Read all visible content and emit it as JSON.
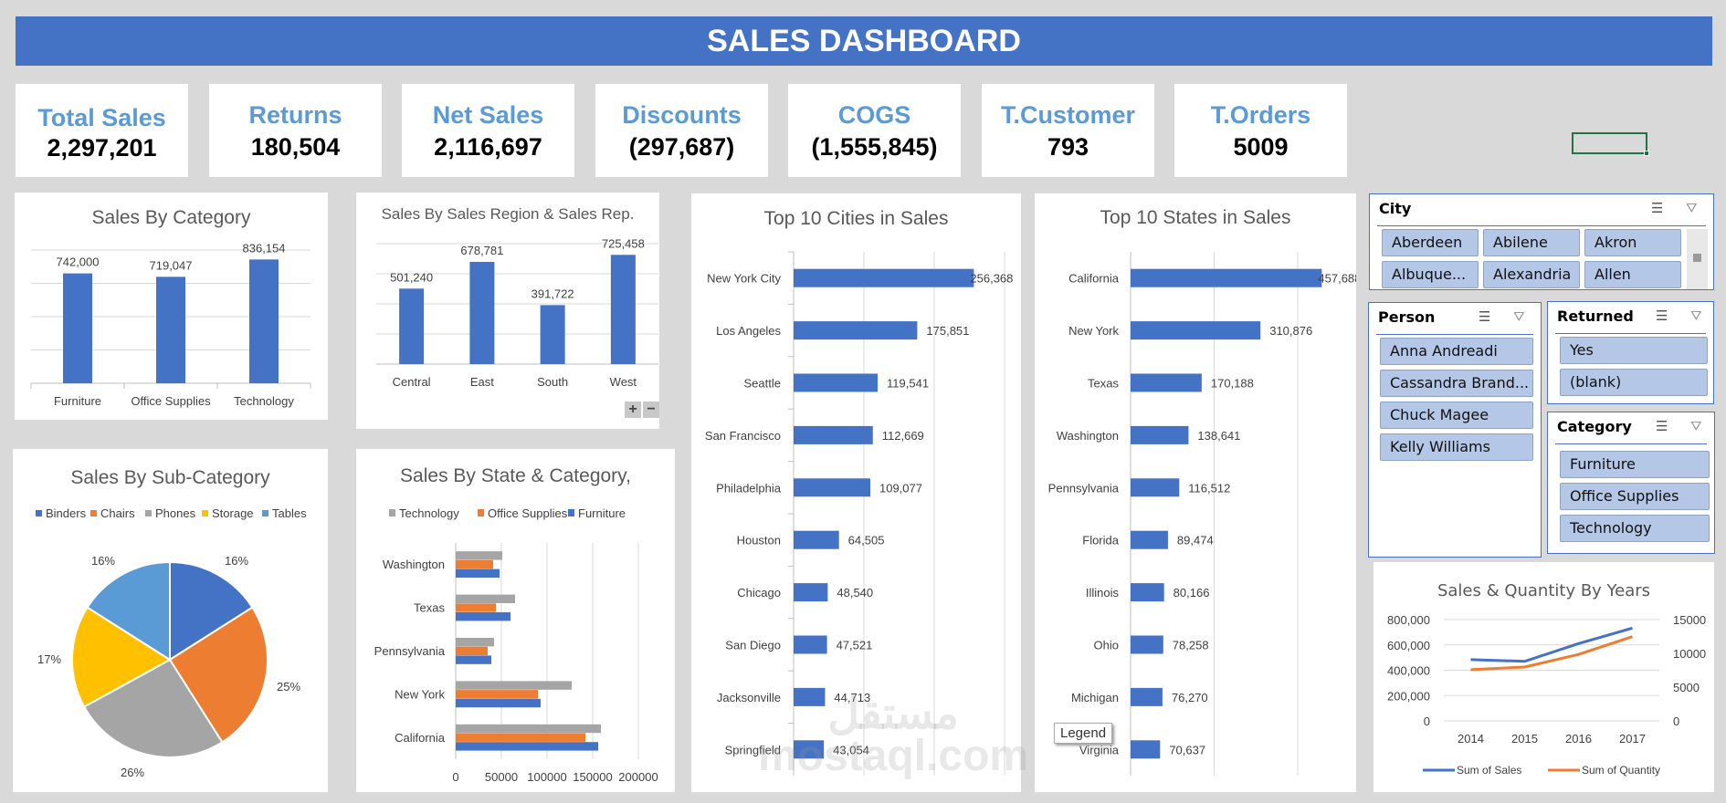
{
  "header": {
    "title": "SALES DASHBOARD"
  },
  "kpis": [
    {
      "label": "Total Sales",
      "value": "2,297,201"
    },
    {
      "label": "Returns",
      "value": "180,504"
    },
    {
      "label": "Net Sales",
      "value": "2,116,697"
    },
    {
      "label": "Discounts",
      "value": "(297,687)"
    },
    {
      "label": "COGS",
      "value": "(1,555,845)"
    },
    {
      "label": "T.Customer",
      "value": "793"
    },
    {
      "label": "T.Orders",
      "value": "5009"
    }
  ],
  "colors": {
    "header": "#4472c4",
    "kpi_label": "#5b9bd5",
    "bar": "#4472c4",
    "orange": "#ed7d31",
    "gray": "#a5a5a5",
    "yellow": "#ffc000",
    "lightblue": "#5b9bd5",
    "slicer_button": "#b4c7e7",
    "background": "#d9d9d9"
  },
  "slicers": {
    "city": {
      "title": "City",
      "items": [
        "Aberdeen",
        "Abilene",
        "Akron",
        "Albuque...",
        "Alexandria",
        "Allen"
      ]
    },
    "person": {
      "title": "Person",
      "items": [
        "Anna Andreadi",
        "Cassandra Brand...",
        "Chuck Magee",
        "Kelly Williams"
      ]
    },
    "returned": {
      "title": "Returned",
      "items": [
        "Yes",
        "(blank)"
      ]
    },
    "category": {
      "title": "Category",
      "items": [
        "Furniture",
        "Office Supplies",
        "Technology"
      ]
    },
    "icons": {
      "multiselect": "multi-select-icon",
      "clear": "clear-filter-icon"
    }
  },
  "zoom_buttons": {
    "plus": "+",
    "minus": "−"
  },
  "legend_tooltip": "Legend",
  "watermark": "مستقل mostaql.com",
  "chart_data": [
    {
      "type": "bar",
      "title": "Sales By Category",
      "categories": [
        "Furniture",
        "Office Supplies",
        "Technology"
      ],
      "values": [
        742000,
        719047,
        836154
      ],
      "data_labels": [
        "742,000",
        "719,047",
        "836,154"
      ],
      "ylim": [
        0,
        900000
      ],
      "grid": true
    },
    {
      "type": "bar",
      "title": "Sales By Sales Region & Sales Rep.",
      "categories": [
        "Central",
        "East",
        "South",
        "West"
      ],
      "values": [
        501240,
        678781,
        391722,
        725458
      ],
      "data_labels": [
        "501,240",
        "678,781",
        "391,722",
        "725,458"
      ],
      "ylim": [
        0,
        800000
      ],
      "grid": true
    },
    {
      "type": "pie",
      "title": "Sales By Sub-Category",
      "categories": [
        "Binders",
        "Chairs",
        "Phones",
        "Storage",
        "Tables"
      ],
      "values": [
        16,
        25,
        26,
        17,
        16
      ],
      "data_labels": [
        "16%",
        "25%",
        "26%",
        "17%",
        "16%"
      ],
      "colors": [
        "#4472c4",
        "#ed7d31",
        "#a5a5a5",
        "#ffc000",
        "#5b9bd5"
      ],
      "legend": "top"
    },
    {
      "type": "bar",
      "orientation": "horizontal",
      "title": "Sales By State & Category,",
      "categories": [
        "Washington",
        "Texas",
        "Pennsylvania",
        "New York",
        "California"
      ],
      "series": [
        {
          "name": "Technology",
          "color": "#a5a5a5",
          "values": [
            51000,
            65000,
            42000,
            127000,
            159000
          ]
        },
        {
          "name": "Office Supplies",
          "color": "#ed7d31",
          "values": [
            41000,
            44000,
            35000,
            90000,
            142000
          ]
        },
        {
          "name": "Furniture",
          "color": "#4472c4",
          "values": [
            48000,
            60000,
            39000,
            93000,
            156000
          ]
        }
      ],
      "xlim": [
        0,
        200000
      ],
      "xticks": [
        "0",
        "50000",
        "100000",
        "150000",
        "200000"
      ],
      "legend": "top",
      "grid": true
    },
    {
      "type": "bar",
      "orientation": "horizontal",
      "title": "Top 10 Cities in Sales",
      "categories": [
        "New York City",
        "Los Angeles",
        "Seattle",
        "San Francisco",
        "Philadelphia",
        "Houston",
        "Chicago",
        "San Diego",
        "Jacksonville",
        "Springfield"
      ],
      "values": [
        256368,
        175851,
        119541,
        112669,
        109077,
        64505,
        48540,
        47521,
        44713,
        43054
      ],
      "data_labels": [
        "256,368",
        "175,851",
        "119,541",
        "112,669",
        "109,077",
        "64,505",
        "48,540",
        "47,521",
        "44,713",
        "43,054"
      ],
      "xlim": [
        0,
        300000
      ],
      "grid": true
    },
    {
      "type": "bar",
      "orientation": "horizontal",
      "title": "Top 10 States in Sales",
      "categories": [
        "California",
        "New York",
        "Texas",
        "Washington",
        "Pennsylvania",
        "Florida",
        "Illinois",
        "Ohio",
        "Michigan",
        "Virginia"
      ],
      "values": [
        457688,
        310876,
        170188,
        138641,
        116512,
        89474,
        80166,
        78258,
        76270,
        70637
      ],
      "data_labels": [
        "457,688",
        "310,876",
        "170,188",
        "138,641",
        "116,512",
        "89,474",
        "80,166",
        "78,258",
        "76,270",
        "70,637"
      ],
      "xlim": [
        0,
        400000
      ],
      "grid": true
    },
    {
      "type": "line",
      "title": "Sales & Quantity By Years",
      "categories": [
        "2014",
        "2015",
        "2016",
        "2017"
      ],
      "series": [
        {
          "name": "Sum of Sales",
          "axis": "left",
          "color": "#4472c4",
          "values": [
            484000,
            470000,
            610000,
            733000
          ]
        },
        {
          "name": "Sum of Quantity",
          "axis": "right",
          "color": "#ed7d31",
          "values": [
            7581,
            7979,
            9837,
            12476
          ]
        }
      ],
      "ylim_left": [
        0,
        800000
      ],
      "yticks_left": [
        "0",
        "200,000",
        "400,000",
        "600,000",
        "800,000"
      ],
      "ylim_right": [
        0,
        15000
      ],
      "yticks_right": [
        "0",
        "5000",
        "10000",
        "15000"
      ],
      "legend": "bottom",
      "grid": true
    }
  ]
}
